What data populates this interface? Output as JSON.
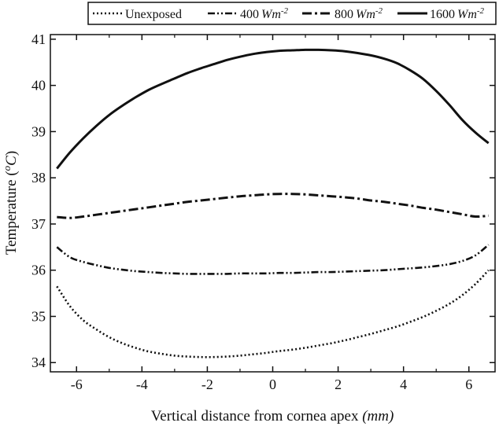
{
  "chart_data": {
    "type": "line",
    "xlabel": "Vertical distance from cornea apex",
    "xlabel_unit": "(mm)",
    "ylabel": "Temperature (",
    "ylabel_unit_o": "o",
    "ylabel_unit_c": "C",
    "ylabel_close": ")",
    "xlim": [
      -6.8,
      6.8
    ],
    "ylim": [
      33.8,
      41.1
    ],
    "xticks": [
      -6,
      -4,
      -2,
      0,
      2,
      4,
      6
    ],
    "yticks": [
      34,
      35,
      36,
      37,
      38,
      39,
      40,
      41
    ],
    "legend_position": "top",
    "grid": false,
    "series": [
      {
        "name": "Unexposed",
        "style": "dotted",
        "x": [
          -6.6,
          -6.2,
          -5.8,
          -5.4,
          -5.0,
          -4.6,
          -4.2,
          -3.8,
          -3.4,
          -3.0,
          -2.6,
          -2.2,
          -1.8,
          -1.4,
          -1.0,
          -0.6,
          -0.2,
          0.2,
          0.6,
          1.0,
          1.4,
          1.8,
          2.2,
          2.6,
          3.0,
          3.4,
          3.8,
          4.2,
          4.6,
          5.0,
          5.4,
          5.8,
          6.2,
          6.6
        ],
        "y": [
          35.65,
          35.22,
          34.92,
          34.72,
          34.55,
          34.42,
          34.32,
          34.24,
          34.19,
          34.15,
          34.13,
          34.12,
          34.12,
          34.13,
          34.15,
          34.18,
          34.21,
          34.25,
          34.28,
          34.32,
          34.37,
          34.42,
          34.48,
          34.55,
          34.62,
          34.7,
          34.78,
          34.88,
          34.99,
          35.12,
          35.27,
          35.46,
          35.7,
          36.0
        ]
      },
      {
        "name": "400",
        "unit_base": "Wm",
        "unit_exp": "-2",
        "style": "dash-dot-dot",
        "x": [
          -6.6,
          -6.2,
          -5.8,
          -5.4,
          -5.0,
          -4.6,
          -4.2,
          -3.8,
          -3.4,
          -3.0,
          -2.6,
          -2.2,
          -1.8,
          -1.4,
          -1.0,
          -0.6,
          -0.2,
          0.2,
          0.6,
          1.0,
          1.4,
          1.8,
          2.2,
          2.6,
          3.0,
          3.4,
          3.8,
          4.2,
          4.6,
          5.0,
          5.4,
          5.8,
          6.2,
          6.6
        ],
        "y": [
          36.5,
          36.28,
          36.18,
          36.11,
          36.05,
          36.01,
          35.98,
          35.96,
          35.94,
          35.93,
          35.92,
          35.92,
          35.92,
          35.92,
          35.93,
          35.93,
          35.93,
          35.94,
          35.94,
          35.95,
          35.96,
          35.96,
          35.97,
          35.98,
          35.99,
          36.0,
          36.02,
          36.04,
          36.06,
          36.09,
          36.13,
          36.2,
          36.32,
          36.55
        ]
      },
      {
        "name": "800",
        "unit_base": "Wm",
        "unit_exp": "-2",
        "style": "dash-dot",
        "x": [
          -6.6,
          -6.2,
          -5.8,
          -5.4,
          -5.0,
          -4.6,
          -4.2,
          -3.8,
          -3.4,
          -3.0,
          -2.6,
          -2.2,
          -1.8,
          -1.4,
          -1.0,
          -0.6,
          -0.2,
          0.2,
          0.6,
          1.0,
          1.4,
          1.8,
          2.2,
          2.6,
          3.0,
          3.4,
          3.8,
          4.2,
          4.6,
          5.0,
          5.4,
          5.8,
          6.2,
          6.6
        ],
        "y": [
          37.15,
          37.13,
          37.16,
          37.2,
          37.24,
          37.28,
          37.32,
          37.36,
          37.4,
          37.44,
          37.48,
          37.51,
          37.54,
          37.57,
          37.6,
          37.62,
          37.64,
          37.65,
          37.65,
          37.64,
          37.62,
          37.6,
          37.58,
          37.55,
          37.51,
          37.48,
          37.44,
          37.4,
          37.35,
          37.31,
          37.26,
          37.21,
          37.16,
          37.18
        ]
      },
      {
        "name": "1600",
        "unit_base": "Wm",
        "unit_exp": "-2",
        "style": "solid",
        "x": [
          -6.6,
          -6.2,
          -5.8,
          -5.4,
          -5.0,
          -4.6,
          -4.2,
          -3.8,
          -3.4,
          -3.0,
          -2.6,
          -2.2,
          -1.8,
          -1.4,
          -1.0,
          -0.6,
          -0.2,
          0.2,
          0.6,
          1.0,
          1.4,
          1.8,
          2.2,
          2.6,
          3.0,
          3.4,
          3.8,
          4.2,
          4.6,
          5.0,
          5.4,
          5.8,
          6.2,
          6.6
        ],
        "y": [
          38.2,
          38.55,
          38.85,
          39.12,
          39.36,
          39.56,
          39.74,
          39.9,
          40.03,
          40.15,
          40.27,
          40.37,
          40.46,
          40.55,
          40.62,
          40.68,
          40.72,
          40.75,
          40.76,
          40.77,
          40.77,
          40.76,
          40.74,
          40.7,
          40.65,
          40.58,
          40.48,
          40.33,
          40.14,
          39.88,
          39.58,
          39.25,
          38.98,
          38.75
        ]
      }
    ]
  }
}
